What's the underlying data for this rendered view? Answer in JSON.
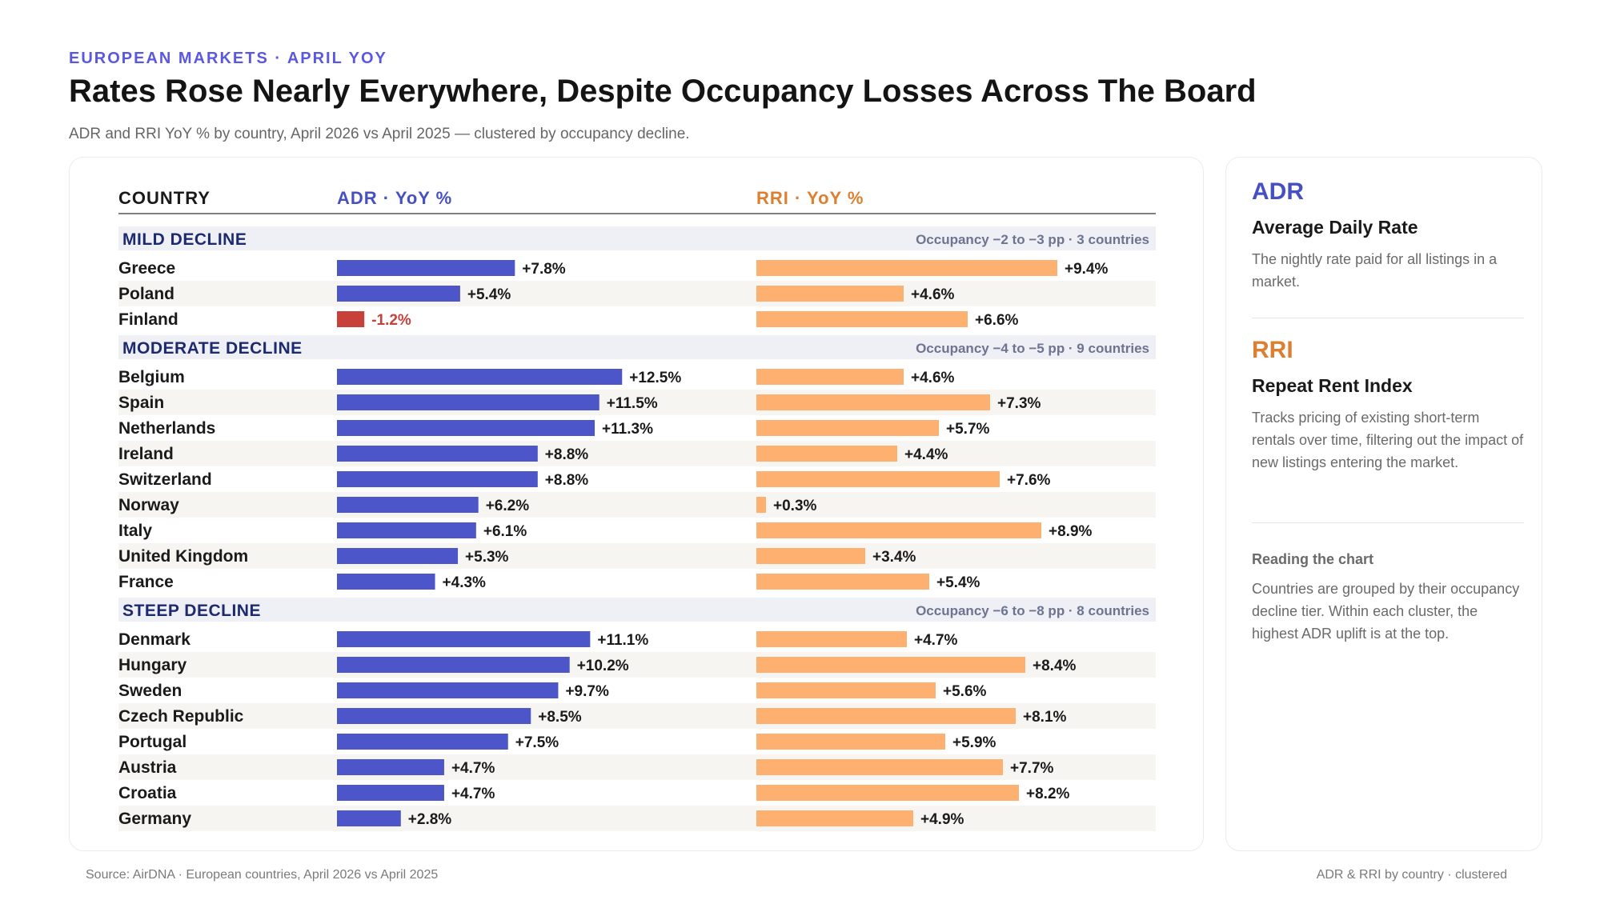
{
  "header": {
    "eyebrow": "EUROPEAN MARKETS · APRIL YOY",
    "title": "Rates Rose Nearly Everywhere, Despite Occupancy Losses Across The Board",
    "subtitle": "ADR and RRI YoY % by country, April 2026 vs April 2025 — clustered by occupancy decline."
  },
  "colors": {
    "adr": "#4d56c9",
    "adr_negative": "#c8403a",
    "rri": "#fdb06f",
    "adr_header": "#4650c2",
    "rri_header": "#dd7f30",
    "group_band": "#eef0f6",
    "row_stripe": "#f6f5f2"
  },
  "chart_data": {
    "type": "bar",
    "orientation": "horizontal",
    "columns": {
      "country": "COUNTRY",
      "adr": "ADR · YoY %",
      "rri": "RRI · YoY %"
    },
    "groups": [
      {
        "name": "MILD DECLINE",
        "note": "Occupancy −2 to −3 pp · 3 countries",
        "rows": [
          {
            "country": "Greece",
            "adr": 7.8,
            "adr_label": "+7.8%",
            "rri": 9.4,
            "rri_label": "+9.4%"
          },
          {
            "country": "Poland",
            "adr": 5.4,
            "adr_label": "+5.4%",
            "rri": 4.6,
            "rri_label": "+4.6%"
          },
          {
            "country": "Finland",
            "adr": -1.2,
            "adr_label": "-1.2%",
            "rri": 6.6,
            "rri_label": "+6.6%"
          }
        ]
      },
      {
        "name": "MODERATE DECLINE",
        "note": "Occupancy −4 to −5 pp · 9 countries",
        "rows": [
          {
            "country": "Belgium",
            "adr": 12.5,
            "adr_label": "+12.5%",
            "rri": 4.6,
            "rri_label": "+4.6%"
          },
          {
            "country": "Spain",
            "adr": 11.5,
            "adr_label": "+11.5%",
            "rri": 7.3,
            "rri_label": "+7.3%"
          },
          {
            "country": "Netherlands",
            "adr": 11.3,
            "adr_label": "+11.3%",
            "rri": 5.7,
            "rri_label": "+5.7%"
          },
          {
            "country": "Ireland",
            "adr": 8.8,
            "adr_label": "+8.8%",
            "rri": 4.4,
            "rri_label": "+4.4%"
          },
          {
            "country": "Switzerland",
            "adr": 8.8,
            "adr_label": "+8.8%",
            "rri": 7.6,
            "rri_label": "+7.6%"
          },
          {
            "country": "Norway",
            "adr": 6.2,
            "adr_label": "+6.2%",
            "rri": 0.3,
            "rri_label": "+0.3%"
          },
          {
            "country": "Italy",
            "adr": 6.1,
            "adr_label": "+6.1%",
            "rri": 8.9,
            "rri_label": "+8.9%"
          },
          {
            "country": "United Kingdom",
            "adr": 5.3,
            "adr_label": "+5.3%",
            "rri": 3.4,
            "rri_label": "+3.4%"
          },
          {
            "country": "France",
            "adr": 4.3,
            "adr_label": "+4.3%",
            "rri": 5.4,
            "rri_label": "+5.4%"
          }
        ]
      },
      {
        "name": "STEEP DECLINE",
        "note": "Occupancy −6 to −8 pp · 8 countries",
        "rows": [
          {
            "country": "Denmark",
            "adr": 11.1,
            "adr_label": "+11.1%",
            "rri": 4.7,
            "rri_label": "+4.7%"
          },
          {
            "country": "Hungary",
            "adr": 10.2,
            "adr_label": "+10.2%",
            "rri": 8.4,
            "rri_label": "+8.4%"
          },
          {
            "country": "Sweden",
            "adr": 9.7,
            "adr_label": "+9.7%",
            "rri": 5.6,
            "rri_label": "+5.6%"
          },
          {
            "country": "Czech Republic",
            "adr": 8.5,
            "adr_label": "+8.5%",
            "rri": 8.1,
            "rri_label": "+8.1%"
          },
          {
            "country": "Portugal",
            "adr": 7.5,
            "adr_label": "+7.5%",
            "rri": 5.9,
            "rri_label": "+5.9%"
          },
          {
            "country": "Austria",
            "adr": 4.7,
            "adr_label": "+4.7%",
            "rri": 7.7,
            "rri_label": "+7.7%"
          },
          {
            "country": "Croatia",
            "adr": 4.7,
            "adr_label": "+4.7%",
            "rri": 8.2,
            "rri_label": "+8.2%"
          },
          {
            "country": "Germany",
            "adr": 2.8,
            "adr_label": "+2.8%",
            "rri": 4.9,
            "rri_label": "+4.9%"
          }
        ]
      }
    ]
  },
  "sidebar": {
    "adr": {
      "abbr": "ADR",
      "name": "Average Daily Rate",
      "desc": "The nightly rate paid for all listings in a market."
    },
    "rri": {
      "abbr": "RRI",
      "name": "Repeat Rent Index",
      "desc": "Tracks pricing of existing short-term rentals over time, filtering out the impact of new listings entering the market."
    },
    "reading": {
      "title": "Reading the chart",
      "desc": "Countries are grouped by their occupancy decline tier. Within each cluster, the highest ADR uplift is at the top."
    }
  },
  "footer": {
    "source": "Source: AirDNA · European countries, April 2026 vs April 2025",
    "tag": "ADR & RRI by country · clustered"
  }
}
